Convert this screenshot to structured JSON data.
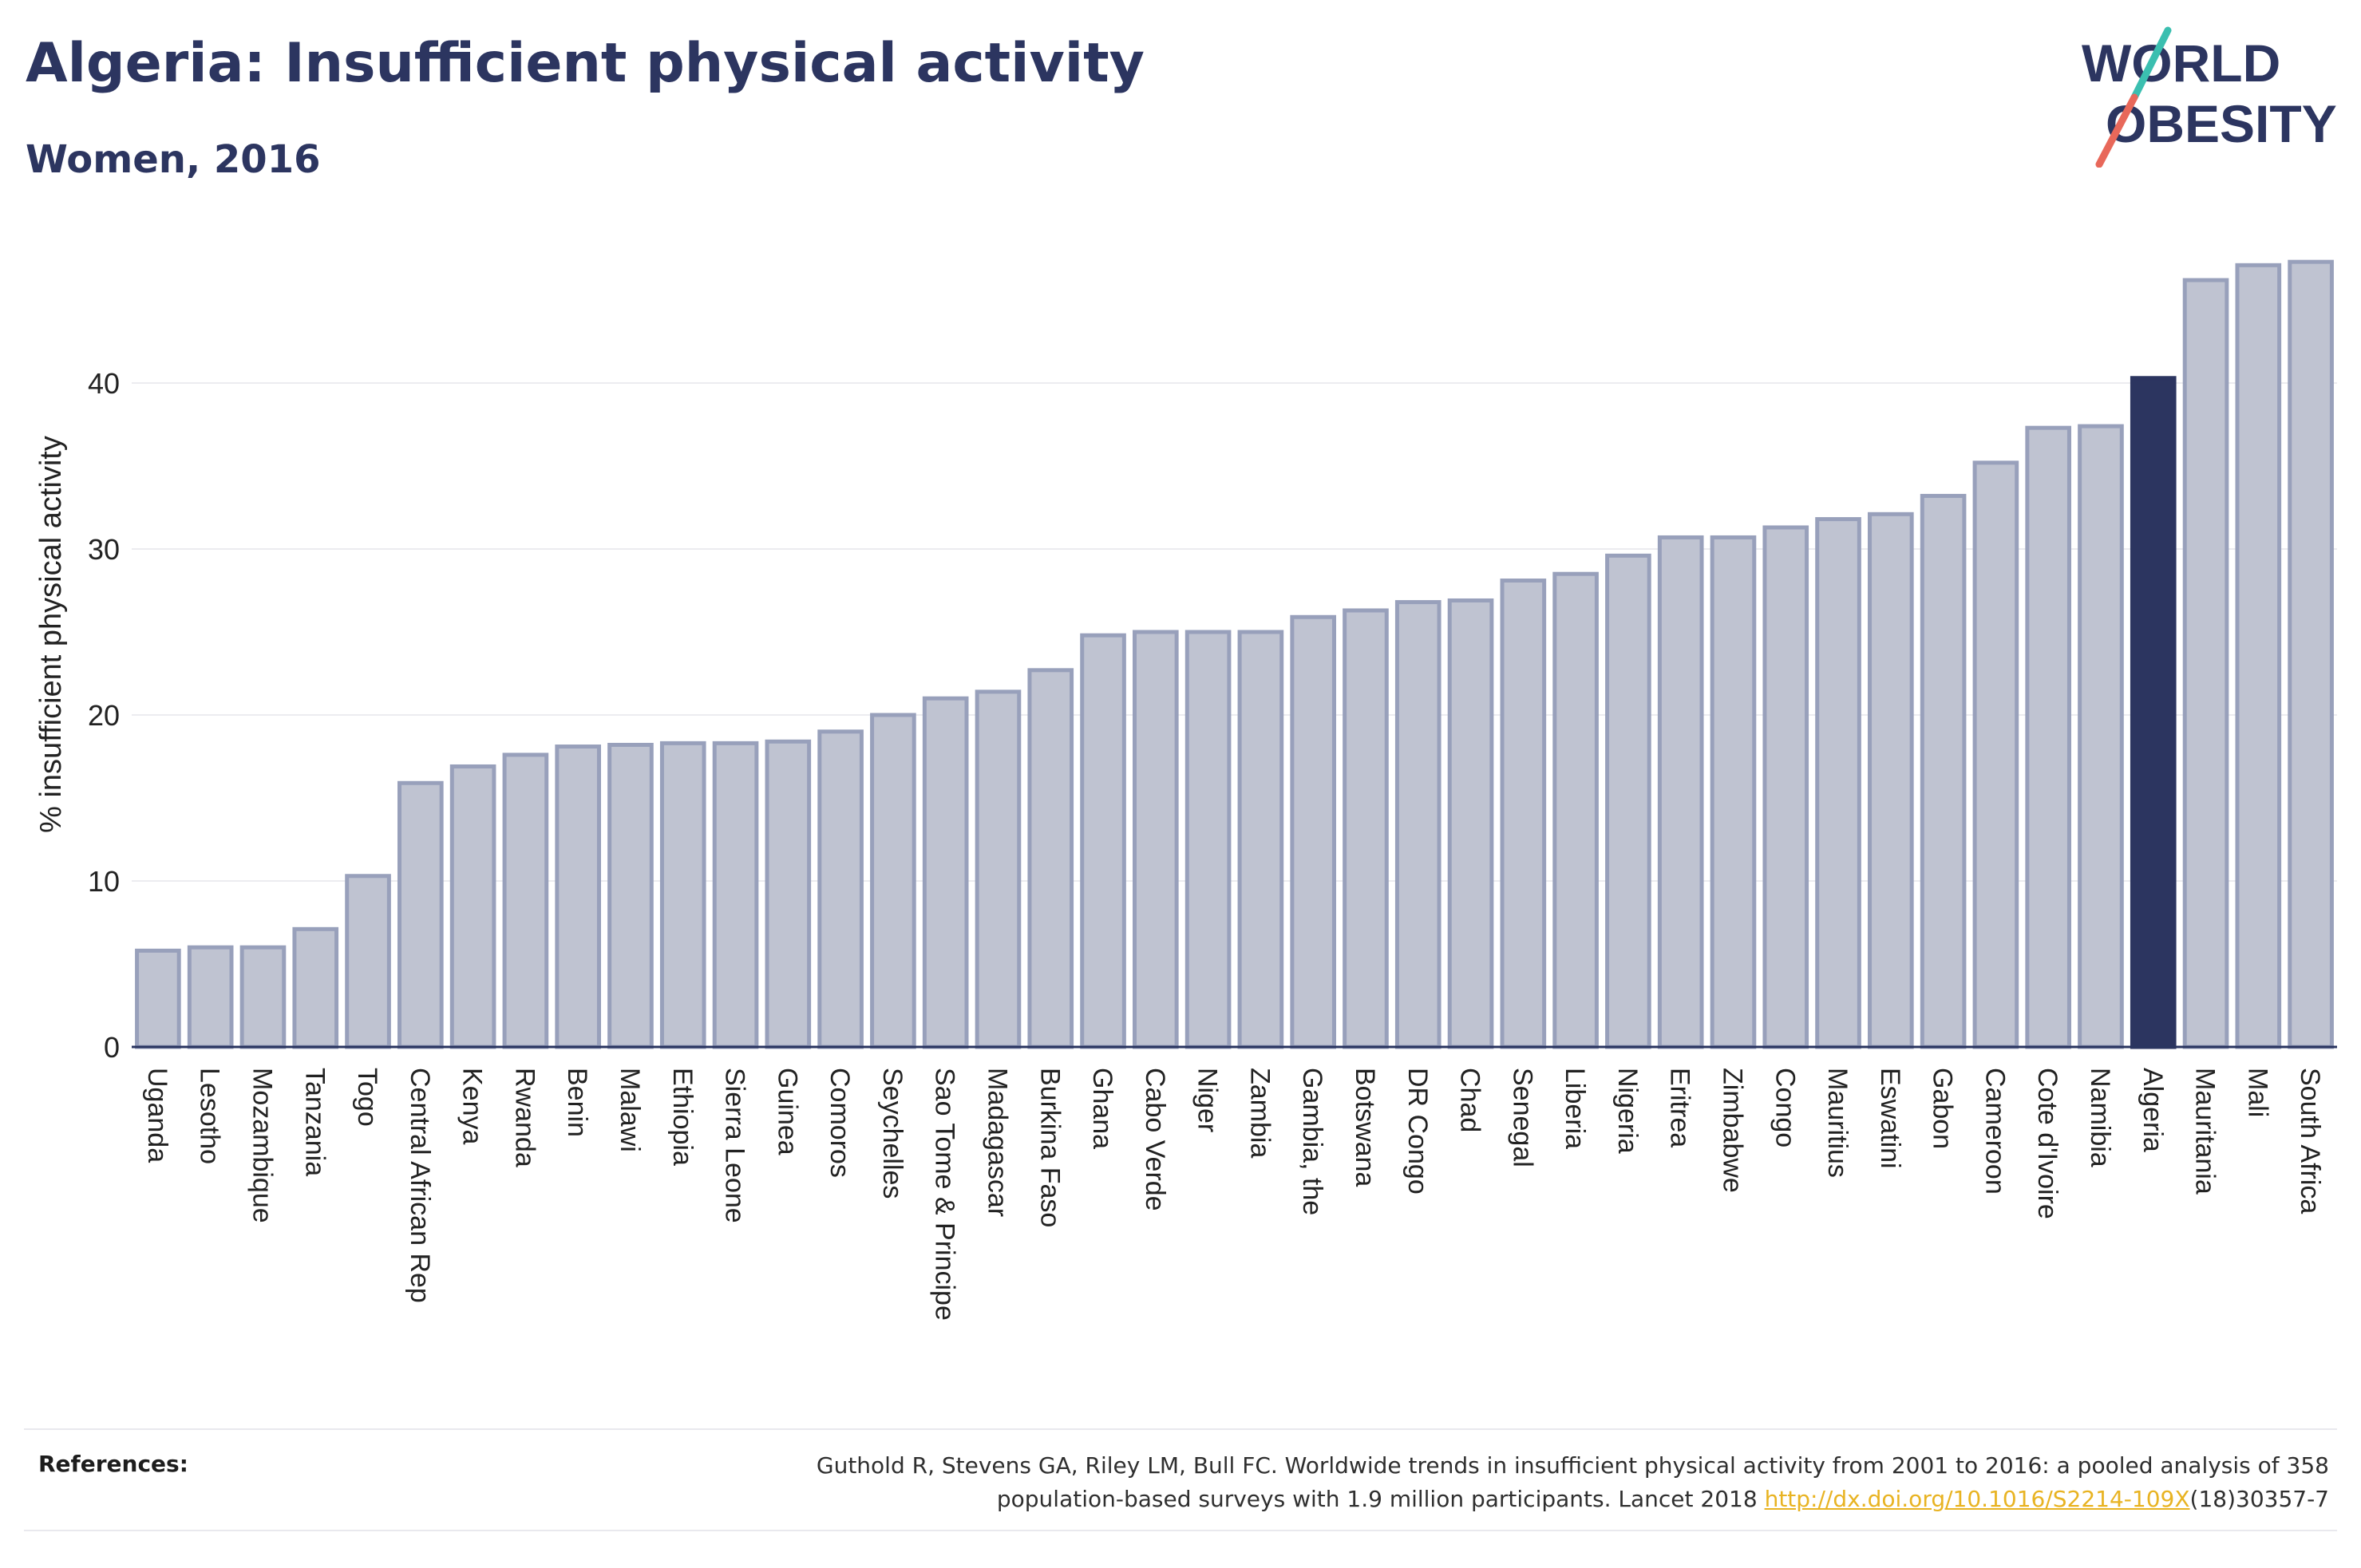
{
  "header": {
    "title": "Algeria: Insufficient physical activity",
    "subtitle": "Women, 2016"
  },
  "logo": {
    "line1": "WORLD",
    "line2": "OBESITY",
    "colors": {
      "text": "#2c3560",
      "stroke_top": "#3bbfb0",
      "stroke_bottom": "#e8685a"
    }
  },
  "chart_data": {
    "type": "bar",
    "ylabel": "% insufficient physical activity",
    "ylim": [
      0,
      48
    ],
    "yticks": [
      0,
      10,
      20,
      30,
      40
    ],
    "grid": true,
    "highlight": "Algeria",
    "colors": {
      "bar": "#bfc3d1",
      "bar_border": "#98a0bb",
      "highlight": "#2c3560",
      "grid": "#ececf0",
      "axis": "#2a3560"
    },
    "categories": [
      "Uganda",
      "Lesotho",
      "Mozambique",
      "Tanzania",
      "Togo",
      "Central African Rep",
      "Kenya",
      "Rwanda",
      "Benin",
      "Malawi",
      "Ethiopia",
      "Sierra Leone",
      "Guinea",
      "Comoros",
      "Seychelles",
      "Sao Tome & Principe",
      "Madagascar",
      "Burkina Faso",
      "Ghana",
      "Cabo Verde",
      "Niger",
      "Zambia",
      "Gambia, the",
      "Botswana",
      "DR Congo",
      "Chad",
      "Senegal",
      "Liberia",
      "Nigeria",
      "Eritrea",
      "Zimbabwe",
      "Congo",
      "Mauritius",
      "Eswatini",
      "Gabon",
      "Cameroon",
      "Cote d'Ivoire",
      "Namibia",
      "Algeria",
      "Mauritania",
      "Mali",
      "South Africa"
    ],
    "values": [
      5.8,
      6.0,
      6.0,
      7.1,
      10.3,
      15.9,
      16.9,
      17.6,
      18.1,
      18.2,
      18.3,
      18.3,
      18.4,
      19.0,
      20.0,
      21.0,
      21.4,
      22.7,
      24.8,
      25.0,
      25.0,
      25.0,
      25.9,
      26.3,
      26.8,
      26.9,
      28.1,
      28.5,
      29.6,
      30.7,
      30.7,
      31.3,
      31.8,
      32.1,
      33.2,
      35.2,
      37.3,
      37.4,
      40.3,
      46.2,
      47.1,
      47.3
    ]
  },
  "references": {
    "label": "References:",
    "text_line1": "Guthold R, Stevens GA, Riley LM, Bull FC. Worldwide trends in insufficient physical activity from 2001 to 2016: a pooled analysis of 358",
    "text_line2_prefix": "population-based surveys with 1.9 million participants. Lancet 2018 ",
    "link": "http://dx.doi.org/10.1016/S2214-109X",
    "text_line2_suffix": "(18)30357-7"
  }
}
